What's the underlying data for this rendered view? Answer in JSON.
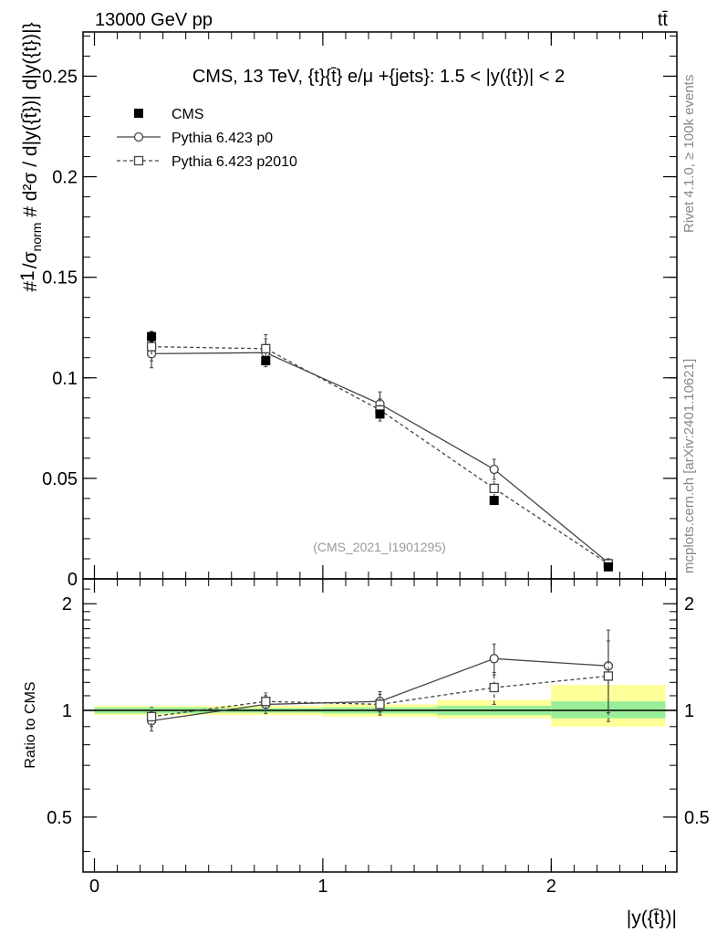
{
  "header": {
    "energy_label": "13000 GeV pp",
    "process_label": "tt̄"
  },
  "side_labels": {
    "rivet": "Rivet 4.1.0, ≥ 100k events",
    "mcplots": "mcplots.cern.ch [arXiv:2401.10621]"
  },
  "chart_data": [
    {
      "type": "line",
      "panel": "main",
      "title": "CMS, 13 TeV, {t}{t̄} e/μ +{jets}: 1.5 < |y({t})| < 2",
      "ylabel_numerator": "# 1/σnorm # d²σ/d|y({t̄})| d|y({t})|}",
      "xlabel": "|y({t̄})|",
      "watermark": "(CMS_2021_I1901295)",
      "xlim": [
        -0.05,
        2.55
      ],
      "ylim": [
        0,
        0.272
      ],
      "y_ticks": [
        0,
        0.05,
        0.1,
        0.15,
        0.2,
        0.25
      ],
      "y_tick_labels": [
        "0",
        "0.05",
        "0.1",
        "0.15",
        "0.2",
        "0.25"
      ],
      "legend": [
        "CMS",
        "Pythia 6.423 p0",
        "Pythia 6.423 p2010"
      ],
      "x": [
        0.25,
        0.75,
        1.25,
        1.75,
        2.25
      ],
      "series": [
        {
          "name": "CMS",
          "values": [
            0.1205,
            0.1085,
            0.082,
            0.039,
            0.006
          ],
          "errors": [
            0.0025,
            0.002,
            0.0015,
            0.001,
            0.0005
          ]
        },
        {
          "name": "Pythia 6.423 p0",
          "values": [
            0.112,
            0.1125,
            0.087,
            0.0545,
            0.008
          ],
          "errors": [
            0.007,
            0.007,
            0.006,
            0.005,
            0.0015
          ]
        },
        {
          "name": "Pythia 6.423 p2010",
          "values": [
            0.1155,
            0.1145,
            0.084,
            0.045,
            0.0075
          ],
          "errors": [
            0.007,
            0.007,
            0.0055,
            0.0045,
            0.0015
          ]
        }
      ]
    },
    {
      "type": "line",
      "panel": "ratio",
      "ylabel": "Ratio to CMS",
      "xlim": [
        -0.05,
        2.55
      ],
      "ylim": [
        0.35,
        2.35
      ],
      "y_ticks": [
        0.5,
        1,
        2
      ],
      "y_tick_labels": [
        "0.5",
        "1",
        "2"
      ],
      "x_ticks": [
        0,
        1,
        2
      ],
      "x_tick_labels": [
        "0",
        "1",
        "2"
      ],
      "bins": [
        [
          0,
          0.5
        ],
        [
          0.5,
          1.0
        ],
        [
          1.0,
          1.5
        ],
        [
          1.5,
          2.0
        ],
        [
          2.0,
          2.5
        ]
      ],
      "band_inner": [
        [
          0.98,
          1.02
        ],
        [
          0.985,
          1.015
        ],
        [
          0.98,
          1.02
        ],
        [
          0.97,
          1.03
        ],
        [
          0.95,
          1.06
        ]
      ],
      "band_outer": [
        [
          0.97,
          1.03
        ],
        [
          0.97,
          1.03
        ],
        [
          0.96,
          1.04
        ],
        [
          0.95,
          1.07
        ],
        [
          0.9,
          1.18
        ]
      ],
      "x": [
        0.25,
        0.75,
        1.25,
        1.75,
        2.25
      ],
      "series": [
        {
          "name": "Pythia 6.423 p0",
          "values": [
            0.935,
            1.04,
            1.06,
            1.4,
            1.335
          ],
          "errors": [
            0.06,
            0.06,
            0.07,
            0.14,
            0.35
          ]
        },
        {
          "name": "Pythia 6.423 p2010",
          "values": [
            0.96,
            1.06,
            1.04,
            1.16,
            1.25
          ],
          "errors": [
            0.06,
            0.06,
            0.07,
            0.12,
            0.32
          ]
        }
      ]
    }
  ]
}
